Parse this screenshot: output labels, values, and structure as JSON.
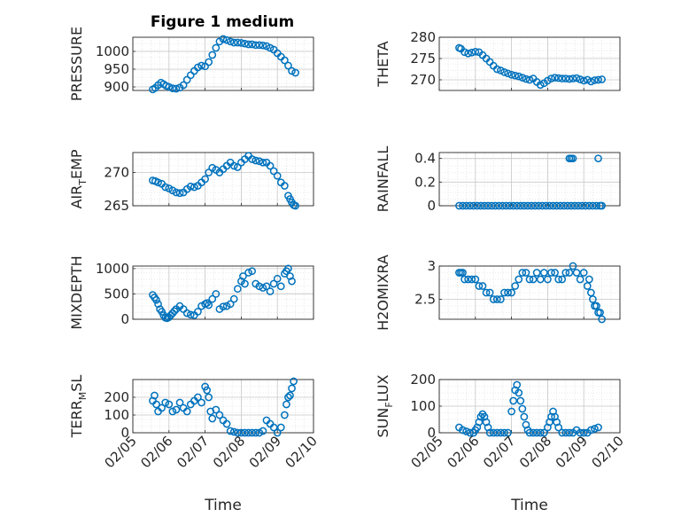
{
  "figure": {
    "title": "Figure 1 medium",
    "marker_color": "#0072BD",
    "xlabel": "Time",
    "xticks": [
      "02/05",
      "02/06",
      "02/07",
      "02/08",
      "02/09",
      "02/10"
    ]
  },
  "chart_data": [
    {
      "type": "scatter",
      "ylabel": "PRESSURE",
      "ylim": [
        890,
        1040
      ],
      "yticks": [
        "900",
        "950",
        "1000"
      ],
      "x": [
        0.55,
        0.62,
        0.7,
        0.78,
        0.85,
        0.92,
        1.0,
        1.1,
        1.2,
        1.3,
        1.4,
        1.5,
        1.6,
        1.7,
        1.8,
        1.9,
        2.0,
        2.1,
        2.2,
        2.3,
        2.4,
        2.5,
        2.6,
        2.7,
        2.8,
        2.9,
        3.0,
        3.1,
        3.2,
        3.3,
        3.4,
        3.5,
        3.6,
        3.7,
        3.8,
        3.9,
        4.0,
        4.1,
        4.2,
        4.3,
        4.4,
        4.5
      ],
      "y": [
        893,
        897,
        905,
        912,
        908,
        903,
        900,
        896,
        895,
        898,
        905,
        920,
        933,
        945,
        955,
        960,
        958,
        970,
        990,
        1010,
        1028,
        1035,
        1032,
        1028,
        1025,
        1025,
        1024,
        1022,
        1020,
        1020,
        1018,
        1018,
        1017,
        1015,
        1010,
        1005,
        995,
        985,
        975,
        960,
        945,
        940
      ],
      "grid": true,
      "minor_grid": true
    },
    {
      "type": "scatter",
      "ylabel": "THETA",
      "ylim": [
        267.5,
        280
      ],
      "yticks": [
        "270",
        "275",
        "280"
      ],
      "x": [
        0.55,
        0.6,
        0.7,
        0.8,
        0.9,
        1.0,
        1.1,
        1.2,
        1.3,
        1.4,
        1.5,
        1.6,
        1.7,
        1.8,
        1.9,
        2.0,
        2.1,
        2.2,
        2.3,
        2.4,
        2.5,
        2.6,
        2.7,
        2.8,
        2.9,
        3.0,
        3.1,
        3.2,
        3.3,
        3.4,
        3.5,
        3.6,
        3.7,
        3.8,
        3.9,
        4.0,
        4.1,
        4.2,
        4.3,
        4.4,
        4.5
      ],
      "y": [
        277.5,
        277.3,
        276.5,
        276.2,
        276.4,
        276.6,
        276.5,
        275.8,
        275.0,
        274.2,
        273.3,
        272.5,
        272.2,
        271.8,
        271.5,
        271.2,
        271.0,
        270.8,
        270.5,
        270.2,
        270.0,
        270.3,
        269.5,
        268.8,
        269.2,
        269.8,
        270.3,
        270.5,
        270.4,
        270.3,
        270.3,
        270.2,
        270.3,
        270.4,
        270.1,
        269.8,
        270.0,
        269.6,
        269.9,
        270.0,
        270.1
      ],
      "grid": true,
      "minor_grid": true
    },
    {
      "type": "scatter",
      "ylabel": "AIR",
      "ylabel_sub": "T",
      "ylabel_end": "EMP",
      "ylim": [
        265,
        273
      ],
      "yticks": [
        "265",
        "270"
      ],
      "x": [
        0.55,
        0.62,
        0.7,
        0.8,
        0.9,
        1.0,
        1.1,
        1.2,
        1.3,
        1.4,
        1.5,
        1.6,
        1.7,
        1.8,
        1.9,
        2.0,
        2.1,
        2.2,
        2.3,
        2.4,
        2.5,
        2.6,
        2.7,
        2.8,
        2.9,
        3.0,
        3.1,
        3.2,
        3.3,
        3.4,
        3.5,
        3.6,
        3.7,
        3.8,
        3.9,
        4.0,
        4.1,
        4.2,
        4.3,
        4.35,
        4.4,
        4.45,
        4.5
      ],
      "y": [
        268.8,
        268.7,
        268.5,
        268.3,
        267.8,
        267.6,
        267.3,
        267.0,
        266.9,
        267.0,
        267.5,
        267.9,
        267.8,
        268.0,
        268.5,
        269.0,
        270.0,
        270.7,
        270.4,
        270.0,
        270.5,
        271.0,
        271.5,
        271.0,
        270.8,
        271.5,
        272.0,
        272.5,
        272.0,
        271.8,
        271.7,
        271.5,
        271.5,
        271.0,
        270.2,
        269.5,
        268.5,
        268.0,
        266.5,
        266.0,
        265.5,
        265.1,
        265.0
      ],
      "grid": true,
      "minor_grid": true
    },
    {
      "type": "scatter",
      "ylabel": "RAINFALL",
      "ylim": [
        0,
        0.45
      ],
      "yticks": [
        "0",
        "0.2",
        "0.4"
      ],
      "x": [
        0.55,
        0.65,
        0.75,
        0.85,
        0.95,
        1.05,
        1.15,
        1.25,
        1.35,
        1.45,
        1.55,
        1.65,
        1.75,
        1.85,
        1.95,
        2.05,
        2.15,
        2.25,
        2.35,
        2.45,
        2.55,
        2.65,
        2.75,
        2.85,
        2.95,
        3.05,
        3.15,
        3.25,
        3.35,
        3.45,
        3.55,
        3.65,
        3.75,
        3.85,
        3.95,
        4.05,
        4.15,
        4.25,
        4.35,
        4.45,
        4.5,
        3.6,
        3.65,
        3.7,
        4.4
      ],
      "y": [
        0,
        0,
        0,
        0,
        0,
        0,
        0,
        0,
        0,
        0,
        0,
        0,
        0,
        0,
        0,
        0,
        0,
        0,
        0,
        0,
        0,
        0,
        0,
        0,
        0,
        0,
        0,
        0,
        0,
        0,
        0,
        0,
        0,
        0,
        0,
        0,
        0,
        0,
        0,
        0,
        0,
        0.4,
        0.4,
        0.4,
        0.4
      ],
      "grid": true,
      "minor_grid": true
    },
    {
      "type": "scatter",
      "ylabel": "MIXDEPTH",
      "ylim": [
        0,
        1050
      ],
      "yticks": [
        "0",
        "500",
        "1000"
      ],
      "x": [
        0.55,
        0.6,
        0.65,
        0.7,
        0.75,
        0.8,
        0.85,
        0.9,
        0.95,
        1.0,
        1.05,
        1.1,
        1.15,
        1.2,
        1.3,
        1.4,
        1.5,
        1.6,
        1.7,
        1.8,
        1.9,
        2.0,
        2.05,
        2.1,
        2.2,
        2.3,
        2.4,
        2.5,
        2.6,
        2.7,
        2.8,
        2.9,
        3.0,
        3.05,
        3.1,
        3.2,
        3.3,
        3.4,
        3.5,
        3.6,
        3.7,
        3.8,
        3.9,
        4.0,
        4.1,
        4.2,
        4.25,
        4.3,
        4.35,
        4.4
      ],
      "y": [
        480,
        430,
        380,
        300,
        200,
        150,
        80,
        30,
        20,
        40,
        80,
        120,
        160,
        200,
        260,
        200,
        120,
        90,
        80,
        150,
        260,
        300,
        320,
        280,
        400,
        500,
        200,
        250,
        260,
        300,
        400,
        600,
        750,
        850,
        700,
        920,
        950,
        700,
        650,
        620,
        650,
        550,
        700,
        800,
        650,
        900,
        950,
        1000,
        850,
        750
      ],
      "grid": true,
      "minor_grid": true
    },
    {
      "type": "scatter",
      "ylabel": "H2OMIXRA",
      "ylim": [
        2.2,
        3.0
      ],
      "yticks": [
        "2.5",
        "3"
      ],
      "x": [
        0.55,
        0.6,
        0.65,
        0.7,
        0.8,
        0.9,
        1.0,
        1.1,
        1.2,
        1.3,
        1.4,
        1.5,
        1.6,
        1.7,
        1.8,
        1.9,
        2.0,
        2.1,
        2.2,
        2.3,
        2.4,
        2.5,
        2.6,
        2.7,
        2.8,
        2.9,
        3.0,
        3.1,
        3.2,
        3.3,
        3.4,
        3.5,
        3.6,
        3.7,
        3.8,
        3.9,
        4.0,
        4.1,
        4.15,
        4.2,
        4.25,
        4.3,
        4.35,
        4.4,
        4.45,
        4.5
      ],
      "y": [
        2.9,
        2.9,
        2.9,
        2.8,
        2.8,
        2.8,
        2.8,
        2.7,
        2.7,
        2.6,
        2.6,
        2.5,
        2.5,
        2.5,
        2.6,
        2.6,
        2.6,
        2.7,
        2.8,
        2.9,
        2.9,
        2.8,
        2.8,
        2.9,
        2.8,
        2.9,
        2.8,
        2.9,
        2.9,
        2.8,
        2.8,
        2.9,
        2.9,
        3.0,
        2.9,
        2.8,
        2.9,
        2.7,
        2.8,
        2.6,
        2.5,
        2.4,
        2.4,
        2.3,
        2.3,
        2.2
      ],
      "grid": true,
      "minor_grid": true
    },
    {
      "type": "scatter",
      "ylabel": "TERR",
      "ylabel_sub": "M",
      "ylabel_end": "SL",
      "ylim": [
        0,
        300
      ],
      "yticks": [
        "0",
        "100",
        "200"
      ],
      "x": [
        0.55,
        0.6,
        0.65,
        0.7,
        0.8,
        0.9,
        1.0,
        1.1,
        1.2,
        1.3,
        1.4,
        1.5,
        1.6,
        1.7,
        1.8,
        1.9,
        2.0,
        2.05,
        2.1,
        2.15,
        2.2,
        2.3,
        2.4,
        2.5,
        2.6,
        2.7,
        2.8,
        2.9,
        3.0,
        3.1,
        3.2,
        3.3,
        3.4,
        3.5,
        3.6,
        3.7,
        3.8,
        3.9,
        4.0,
        4.1,
        4.2,
        4.25,
        4.3,
        4.35,
        4.4,
        4.45
      ],
      "y": [
        180,
        210,
        160,
        120,
        140,
        170,
        160,
        120,
        130,
        170,
        140,
        120,
        160,
        180,
        200,
        170,
        260,
        240,
        200,
        120,
        80,
        130,
        100,
        70,
        50,
        10,
        5,
        0,
        0,
        0,
        0,
        0,
        0,
        0,
        10,
        70,
        50,
        30,
        0,
        30,
        100,
        160,
        200,
        210,
        250,
        290
      ],
      "grid": true,
      "minor_grid": true
    },
    {
      "type": "scatter",
      "ylabel": "SUN",
      "ylabel_sub": "F",
      "ylabel_end": "LUX",
      "ylim": [
        0,
        200
      ],
      "yticks": [
        "0",
        "100",
        "200"
      ],
      "x": [
        0.55,
        0.65,
        0.75,
        0.85,
        0.95,
        1.0,
        1.05,
        1.1,
        1.15,
        1.2,
        1.25,
        1.3,
        1.35,
        1.4,
        1.5,
        1.6,
        1.7,
        1.8,
        1.9,
        2.0,
        2.05,
        2.1,
        2.15,
        2.2,
        2.25,
        2.3,
        2.35,
        2.4,
        2.45,
        2.5,
        2.6,
        2.7,
        2.8,
        2.9,
        3.0,
        3.05,
        3.1,
        3.15,
        3.2,
        3.25,
        3.3,
        3.4,
        3.5,
        3.6,
        3.7,
        3.8,
        3.9,
        4.0,
        4.1,
        4.2,
        4.3,
        4.4
      ],
      "y": [
        20,
        10,
        5,
        0,
        0,
        10,
        20,
        40,
        60,
        70,
        60,
        40,
        20,
        0,
        0,
        0,
        0,
        0,
        0,
        80,
        120,
        160,
        180,
        150,
        120,
        90,
        60,
        30,
        10,
        0,
        0,
        0,
        0,
        0,
        20,
        40,
        60,
        80,
        60,
        40,
        20,
        0,
        0,
        0,
        0,
        10,
        0,
        0,
        0,
        10,
        15,
        20
      ],
      "grid": true,
      "minor_grid": true
    }
  ]
}
